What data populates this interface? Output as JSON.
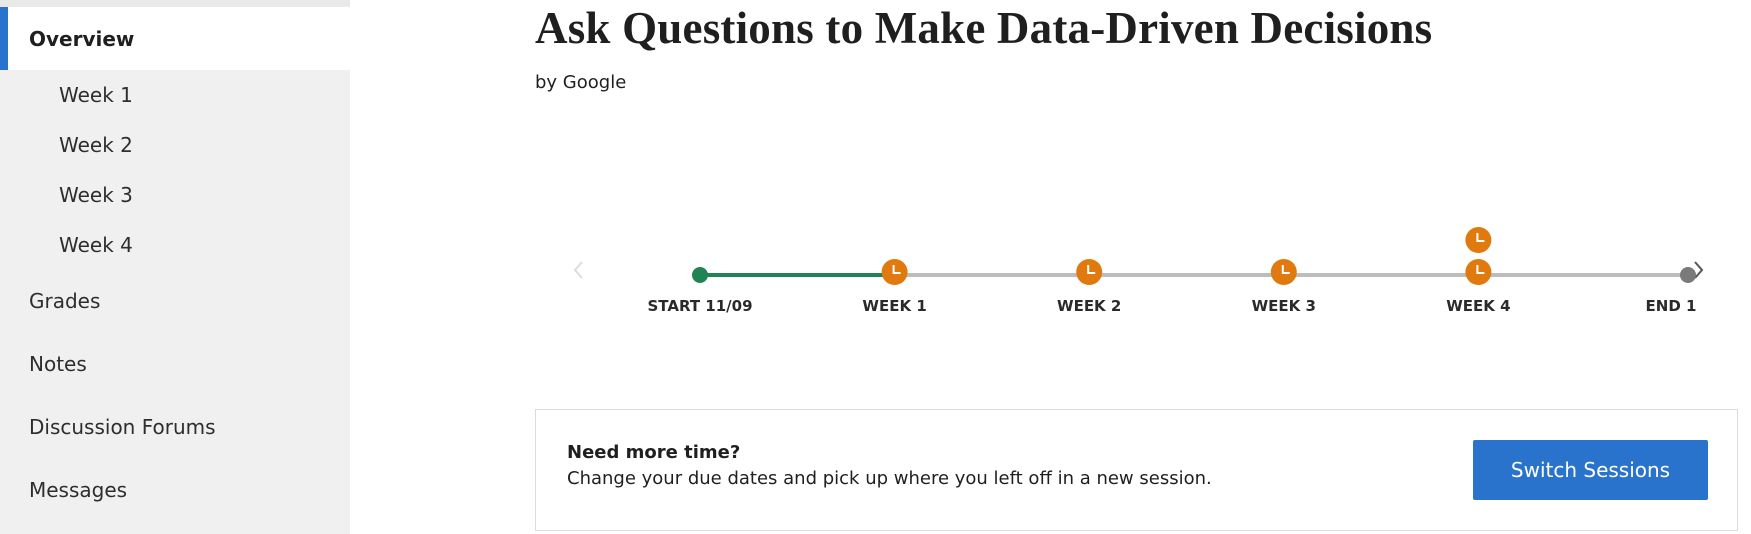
{
  "sidebar": {
    "items": [
      {
        "label": "Overview",
        "active": true
      },
      {
        "label": "Week 1"
      },
      {
        "label": "Week 2"
      },
      {
        "label": "Week 3"
      },
      {
        "label": "Week 4"
      },
      {
        "label": "Grades"
      },
      {
        "label": "Notes"
      },
      {
        "label": "Discussion Forums"
      },
      {
        "label": "Messages"
      }
    ],
    "accent_color": "#2a73cc"
  },
  "course": {
    "title": "Ask Questions to Make Data-Driven Decisions",
    "byline": "by Google"
  },
  "timeline": {
    "milestones": [
      {
        "label": "START 11/09",
        "status": "start",
        "icon": "dot"
      },
      {
        "label": "WEEK 1",
        "status": "deadline",
        "icon": "clock-icon"
      },
      {
        "label": "WEEK 2",
        "status": "deadline",
        "icon": "clock-icon"
      },
      {
        "label": "WEEK 3",
        "status": "deadline",
        "icon": "clock-icon"
      },
      {
        "label": "WEEK 4",
        "status": "deadline",
        "icon": "clock-icon",
        "stacked": 2
      },
      {
        "label": "END 1",
        "status": "end",
        "icon": "dot"
      }
    ],
    "progress_fraction": 0.2,
    "colors": {
      "progress": "#1f8354",
      "track": "#bdbdbd",
      "deadline": "#e07a0e",
      "end": "#7a7a7a",
      "arrow_disabled": "#dddddd",
      "arrow_enabled": "#555555"
    },
    "prev_icon": "chevron-left-icon",
    "next_icon": "chevron-right-icon"
  },
  "session": {
    "heading": "Need more time?",
    "description": "Change your due dates and pick up where you left off in a new session.",
    "button_label": "Switch Sessions"
  }
}
